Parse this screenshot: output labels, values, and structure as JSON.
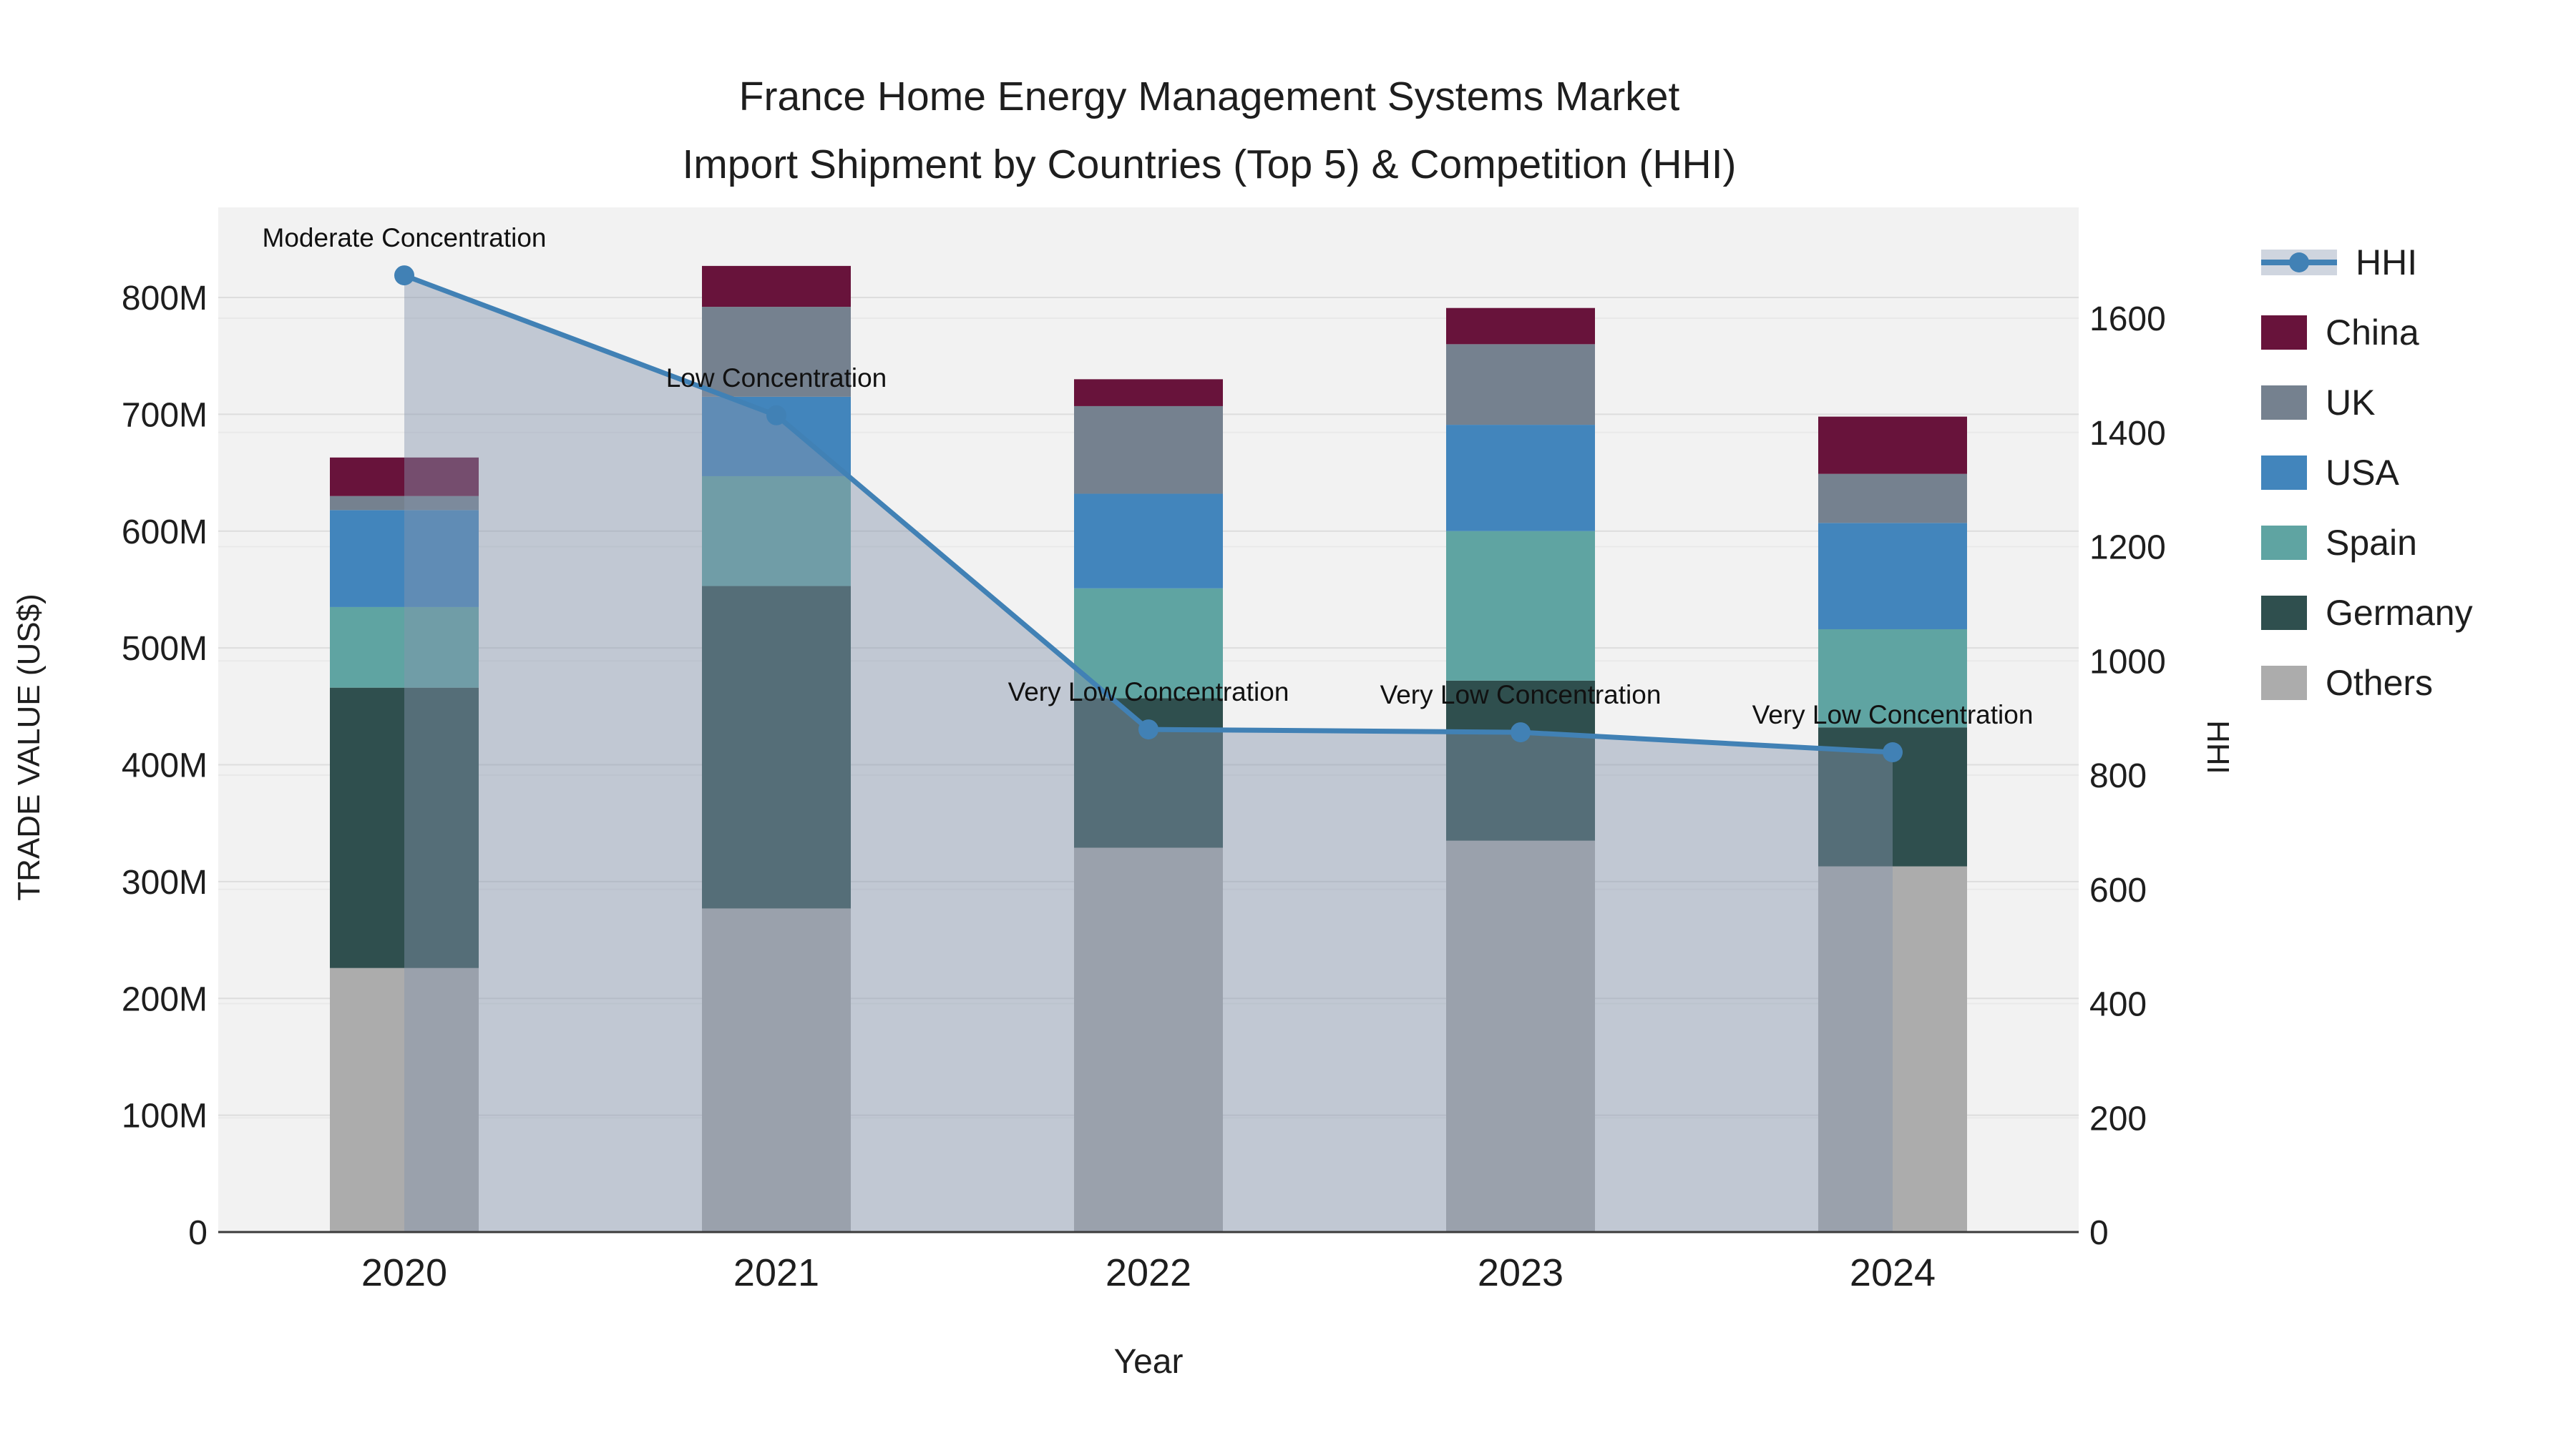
{
  "title": {
    "line1": "France Home Energy Management Systems Market",
    "line2": "Import Shipment by Countries (Top 5) & Competition (HHI)"
  },
  "axes": {
    "x_title": "Year",
    "y_left_title": "TRADE VALUE (US$)",
    "y_right_title": "HHI",
    "x_ticks": [
      "2020",
      "2021",
      "2022",
      "2023",
      "2024"
    ],
    "y_left_ticks": [
      "0",
      "100M",
      "200M",
      "300M",
      "400M",
      "500M",
      "600M",
      "700M",
      "800M"
    ],
    "y_right_ticks": [
      "0",
      "200",
      "400",
      "600",
      "800",
      "1000",
      "1200",
      "1400",
      "1600"
    ]
  },
  "legend": {
    "items": [
      {
        "label": "HHI",
        "type": "line",
        "color": "#4181B5"
      },
      {
        "label": "China",
        "type": "box",
        "color": "#68133B"
      },
      {
        "label": "UK",
        "type": "box",
        "color": "#75818F"
      },
      {
        "label": "USA",
        "type": "box",
        "color": "#4285BC"
      },
      {
        "label": "Spain",
        "type": "box",
        "color": "#5FA4A2"
      },
      {
        "label": "Germany",
        "type": "box",
        "color": "#2F4F4E"
      },
      {
        "label": "Others",
        "type": "box",
        "color": "#ACACAC"
      }
    ]
  },
  "chart_data": {
    "type": "bar",
    "subtype": "stacked-bars-with-line",
    "categories": [
      "2020",
      "2021",
      "2022",
      "2023",
      "2024"
    ],
    "stack_order_bottom_to_top": [
      "Others",
      "Germany",
      "Spain",
      "USA",
      "UK",
      "China"
    ],
    "series": [
      {
        "name": "China",
        "type": "bar",
        "color": "#68133B",
        "values": [
          33,
          35,
          23,
          31,
          49
        ]
      },
      {
        "name": "UK",
        "type": "bar",
        "color": "#75818F",
        "values": [
          12,
          77,
          75,
          69,
          42
        ]
      },
      {
        "name": "USA",
        "type": "bar",
        "color": "#4285BC",
        "values": [
          83,
          68,
          81,
          91,
          91
        ]
      },
      {
        "name": "Spain",
        "type": "bar",
        "color": "#5FA4A2",
        "values": [
          69,
          94,
          94,
          128,
          84
        ]
      },
      {
        "name": "Germany",
        "type": "bar",
        "color": "#2F4F4E",
        "values": [
          240,
          276,
          128,
          137,
          119
        ]
      },
      {
        "name": "Others",
        "type": "bar",
        "color": "#ACACAC",
        "values": [
          226,
          277,
          329,
          335,
          313
        ]
      }
    ],
    "bar_totals_musd": [
      663,
      827,
      730,
      791,
      698
    ],
    "line_series": {
      "name": "HHI",
      "type": "line+markers+area",
      "color": "#4181B5",
      "area_fill": "rgba(134,148,172,0.45)",
      "values": [
        1675,
        1430,
        880,
        875,
        840
      ]
    },
    "annotations": [
      "Moderate Concentration",
      "Low Concentration",
      "Very Low Concentration",
      "Very Low Concentration",
      "Very Low Concentration"
    ],
    "ylabel_left": "TRADE VALUE (US$)",
    "ylabel_right": "HHI",
    "xlabel": "Year",
    "y_left_range_musd": [
      0,
      800
    ],
    "y_right_range": [
      0,
      1600
    ],
    "grid": true,
    "legend_position": "right"
  }
}
